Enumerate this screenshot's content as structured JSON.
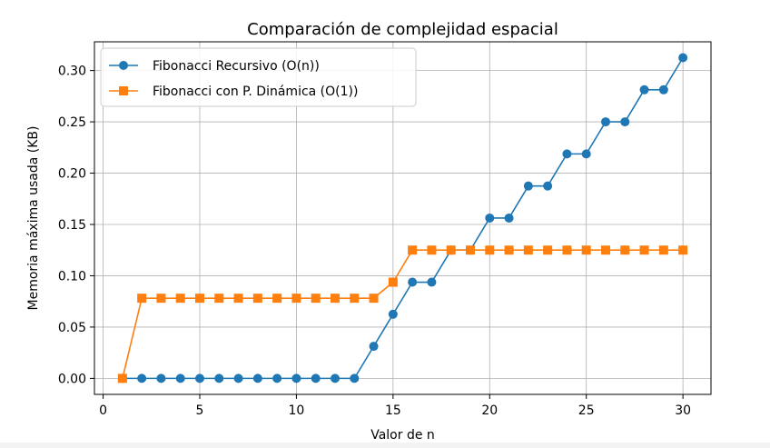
{
  "chart_data": {
    "type": "line",
    "title": "Comparación de complejidad espacial",
    "xlabel": "Valor de n",
    "ylabel": "Memoria máxima usada (KB)",
    "xlim": [
      -0.45,
      31.45
    ],
    "ylim": [
      -0.0156,
      0.328
    ],
    "xticks": [
      0,
      5,
      10,
      15,
      20,
      25,
      30
    ],
    "yticks": [
      0.0,
      0.05,
      0.1,
      0.15,
      0.2,
      0.25,
      0.3
    ],
    "xtick_labels": [
      "0",
      "5",
      "10",
      "15",
      "20",
      "25",
      "30"
    ],
    "ytick_labels": [
      "0.00",
      "0.05",
      "0.10",
      "0.15",
      "0.20",
      "0.25",
      "0.30"
    ],
    "grid": true,
    "legend_position": "top-left",
    "x": [
      1,
      2,
      3,
      4,
      5,
      6,
      7,
      8,
      9,
      10,
      11,
      12,
      13,
      14,
      15,
      16,
      17,
      18,
      19,
      20,
      21,
      22,
      23,
      24,
      25,
      26,
      27,
      28,
      29,
      30
    ],
    "series": [
      {
        "name": "Fibonacci Recursivo (O(n))",
        "color": "#1f77b4",
        "marker": "circle",
        "values": [
          0,
          0,
          0,
          0,
          0,
          0,
          0,
          0,
          0,
          0,
          0,
          0,
          0,
          0.03125,
          0.0625,
          0.09375,
          0.09375,
          0.125,
          0.125,
          0.15625,
          0.15625,
          0.1875,
          0.1875,
          0.21875,
          0.21875,
          0.25,
          0.25,
          0.28125,
          0.28125,
          0.3125
        ]
      },
      {
        "name": "Fibonacci con P. Dinámica (O(1))",
        "color": "#ff7f0e",
        "marker": "square",
        "values": [
          0,
          0.078125,
          0.078125,
          0.078125,
          0.078125,
          0.078125,
          0.078125,
          0.078125,
          0.078125,
          0.078125,
          0.078125,
          0.078125,
          0.078125,
          0.078125,
          0.09375,
          0.125,
          0.125,
          0.125,
          0.125,
          0.125,
          0.125,
          0.125,
          0.125,
          0.125,
          0.125,
          0.125,
          0.125,
          0.125,
          0.125,
          0.125
        ]
      }
    ]
  }
}
